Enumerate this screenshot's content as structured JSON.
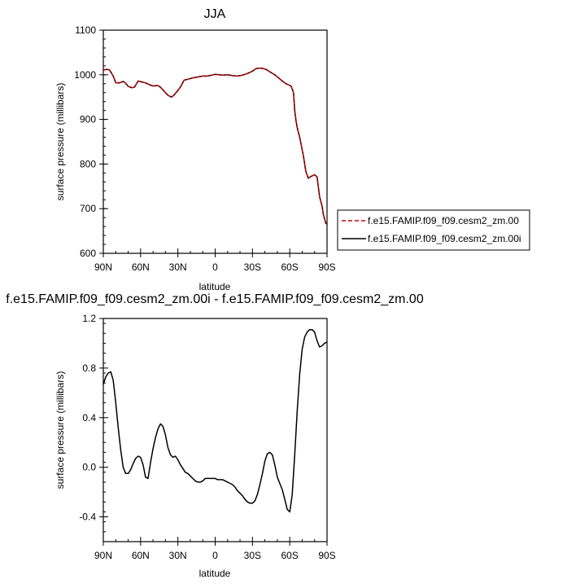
{
  "chart_data": [
    {
      "type": "line",
      "title": "JJA",
      "xlabel": "latitude",
      "ylabel": "surface pressure (millibars)",
      "xlim": [
        -90,
        90
      ],
      "ylim": [
        600,
        1100
      ],
      "xticks": [
        -90,
        -60,
        -30,
        0,
        30,
        60,
        90
      ],
      "xtick_labels": [
        "90N",
        "60N",
        "30N",
        "0",
        "30S",
        "60S",
        "90S"
      ],
      "yticks": [
        600,
        700,
        800,
        900,
        1000,
        1100
      ],
      "ytick_labels": [
        "600",
        "700",
        "800",
        "900",
        "1000",
        "1100"
      ],
      "legend_position": "right",
      "series": [
        {
          "name": "f.e15.FAMIP.f09_f09.cesm2_zm.00",
          "color": "#cc0000",
          "dash": "dashed",
          "x": [
            -90,
            -87,
            -85,
            -82,
            -80,
            -77,
            -74,
            -72,
            -70,
            -67,
            -65,
            -62,
            -59,
            -56,
            -53,
            -50,
            -46,
            -44,
            -41,
            -38,
            -35,
            -33,
            -30,
            -28,
            -25,
            -22,
            -18,
            -14,
            -10,
            -6,
            -3,
            0,
            3,
            6,
            10,
            14,
            18,
            22,
            26,
            30,
            33,
            37,
            41,
            45,
            48,
            51,
            54,
            57,
            61,
            63,
            64,
            65,
            66,
            68,
            71,
            73,
            75,
            77,
            80,
            82,
            83,
            84,
            86,
            87,
            89,
            90
          ],
          "y": [
            1011,
            1012,
            1011,
            997,
            982,
            982,
            985,
            981,
            974,
            971,
            972,
            986,
            984,
            982,
            978,
            975,
            976,
            972,
            963,
            954,
            950,
            955,
            965,
            972,
            988,
            990,
            993,
            995,
            997,
            997,
            999,
            1001,
            1000,
            999,
            1000,
            998,
            997,
            999,
            1003,
            1008,
            1014,
            1015,
            1012,
            1005,
            1000,
            993,
            986,
            980,
            975,
            960,
            920,
            898,
            882,
            860,
            818,
            783,
            768,
            772,
            776,
            771,
            749,
            727,
            706,
            688,
            667,
            666
          ]
        },
        {
          "name": "f.e15.FAMIP.f09_f09.cesm2_zm.00i",
          "color": "#000000",
          "dash": "solid",
          "x": [
            -90,
            -87,
            -85,
            -82,
            -80,
            -77,
            -74,
            -72,
            -70,
            -67,
            -65,
            -62,
            -59,
            -56,
            -53,
            -50,
            -46,
            -44,
            -41,
            -38,
            -35,
            -33,
            -30,
            -28,
            -25,
            -22,
            -18,
            -14,
            -10,
            -6,
            -3,
            0,
            3,
            6,
            10,
            14,
            18,
            22,
            26,
            30,
            33,
            37,
            41,
            45,
            48,
            51,
            54,
            57,
            61,
            63,
            64,
            65,
            66,
            68,
            71,
            73,
            75,
            77,
            80,
            82,
            83,
            84,
            86,
            87,
            89,
            90
          ],
          "y": [
            1011,
            1012,
            1011,
            997,
            982,
            982,
            985,
            981,
            974,
            971,
            972,
            986,
            984,
            982,
            978,
            975,
            976,
            972,
            963,
            954,
            950,
            955,
            965,
            972,
            988,
            990,
            993,
            995,
            997,
            997,
            999,
            1001,
            1000,
            999,
            1000,
            998,
            997,
            999,
            1003,
            1008,
            1014,
            1015,
            1012,
            1005,
            1000,
            993,
            986,
            980,
            975,
            960,
            920,
            898,
            882,
            860,
            818,
            783,
            768,
            772,
            776,
            771,
            749,
            727,
            706,
            688,
            667,
            666
          ]
        }
      ]
    },
    {
      "type": "line",
      "title": "f.e15.FAMIP.f09_f09.cesm2_zm.00i - f.e15.FAMIP.f09_f09.cesm2_zm.00",
      "xlabel": "latitude",
      "ylabel": "surface pressure (millibars)",
      "xlim": [
        -90,
        90
      ],
      "ylim": [
        -0.6,
        1.2
      ],
      "xticks": [
        -90,
        -60,
        -30,
        0,
        30,
        60,
        90
      ],
      "xtick_labels": [
        "90N",
        "60N",
        "30N",
        "0",
        "30S",
        "60S",
        "90S"
      ],
      "yticks": [
        -0.4,
        0.0,
        0.4,
        0.8,
        1.2
      ],
      "ytick_labels": [
        "-0.4",
        "0.0",
        "0.4",
        "0.8",
        "1.2"
      ],
      "series": [
        {
          "name": "",
          "color": "#000000",
          "dash": "solid",
          "x": [
            -90,
            -88,
            -86,
            -84,
            -82,
            -80,
            -78,
            -76,
            -74,
            -72,
            -70,
            -68,
            -66,
            -64,
            -62,
            -60,
            -58,
            -56,
            -54,
            -52,
            -50,
            -48,
            -46,
            -44,
            -42,
            -40,
            -38,
            -36,
            -34,
            -32,
            -30,
            -28,
            -26,
            -24,
            -22,
            -20,
            -18,
            -16,
            -14,
            -12,
            -10,
            -8,
            -6,
            -4,
            -2,
            0,
            2,
            4,
            6,
            8,
            10,
            12,
            14,
            16,
            18,
            20,
            22,
            24,
            26,
            28,
            30,
            32,
            34,
            36,
            38,
            40,
            42,
            44,
            46,
            48,
            50,
            52,
            54,
            56,
            58,
            60,
            62,
            64,
            66,
            68,
            70,
            72,
            74,
            76,
            78,
            80,
            82,
            84,
            86,
            88,
            90
          ],
          "y": [
            0.67,
            0.73,
            0.76,
            0.77,
            0.7,
            0.52,
            0.32,
            0.14,
            0.0,
            -0.05,
            -0.05,
            -0.02,
            0.03,
            0.07,
            0.09,
            0.08,
            0.02,
            -0.08,
            -0.09,
            0.04,
            0.15,
            0.24,
            0.31,
            0.35,
            0.33,
            0.26,
            0.16,
            0.1,
            0.08,
            0.09,
            0.06,
            0.02,
            -0.01,
            -0.04,
            -0.05,
            -0.07,
            -0.09,
            -0.11,
            -0.12,
            -0.12,
            -0.11,
            -0.09,
            -0.09,
            -0.09,
            -0.09,
            -0.09,
            -0.1,
            -0.1,
            -0.1,
            -0.11,
            -0.12,
            -0.13,
            -0.14,
            -0.16,
            -0.19,
            -0.21,
            -0.23,
            -0.26,
            -0.28,
            -0.29,
            -0.29,
            -0.27,
            -0.22,
            -0.14,
            -0.05,
            0.05,
            0.11,
            0.12,
            0.1,
            0.02,
            -0.08,
            -0.13,
            -0.18,
            -0.26,
            -0.34,
            -0.36,
            -0.22,
            0.1,
            0.45,
            0.75,
            0.95,
            1.05,
            1.09,
            1.11,
            1.11,
            1.09,
            1.02,
            0.97,
            0.98,
            1.0,
            1.01
          ]
        }
      ]
    }
  ]
}
